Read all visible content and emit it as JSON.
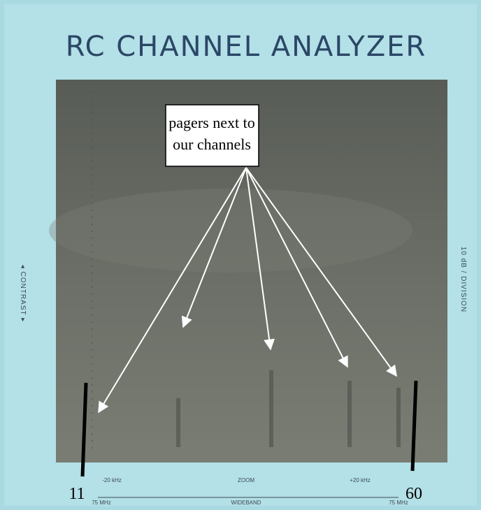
{
  "title": "RC CHANNEL ANALYZER",
  "callout": {
    "lines": [
      "pagers next to",
      "our channels"
    ]
  },
  "markers": [
    "11",
    "60"
  ],
  "side_labels": {
    "left": "◂ CONTRAST ▸",
    "right": "10 dB / DIVISION"
  },
  "bottom_labels": {
    "top_row": [
      "-20 kHz",
      "ZOOM",
      "+20 kHz"
    ],
    "bottom_row": [
      "75 MHz",
      "WIDEBAND",
      "75 MHz"
    ]
  }
}
